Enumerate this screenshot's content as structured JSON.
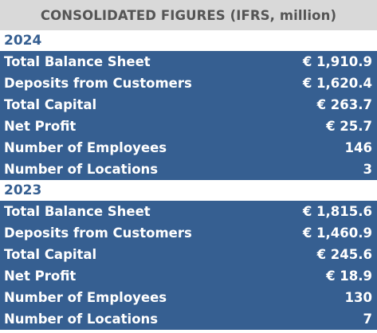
{
  "header": {
    "title": "CONSOLIDATED FIGURES (IFRS, million)"
  },
  "sections": [
    {
      "year": "2024",
      "rows": [
        {
          "label": "Total Balance Sheet",
          "value": "€ 1,910.9"
        },
        {
          "label": "Deposits from Customers",
          "value": "€ 1,620.4"
        },
        {
          "label": "Total Capital",
          "value": "€ 263.7"
        },
        {
          "label": "Net Profit",
          "value": "€ 25.7"
        },
        {
          "label": "Number of Employees",
          "value": "146"
        },
        {
          "label": "Number of Locations",
          "value": "3"
        }
      ]
    },
    {
      "year": "2023",
      "rows": [
        {
          "label": "Total Balance Sheet",
          "value": "€ 1,815.6"
        },
        {
          "label": "Deposits from Customers",
          "value": "€ 1,460.9"
        },
        {
          "label": "Total Capital",
          "value": "€ 245.6"
        },
        {
          "label": "Net Profit",
          "value": "€ 18.9"
        },
        {
          "label": "Number of Employees",
          "value": "130"
        },
        {
          "label": "Number of Locations",
          "value": "7"
        }
      ]
    }
  ],
  "colors": {
    "header_bg": "#d9d9d9",
    "header_text": "#555555",
    "row_bg": "#365f91",
    "year_text": "#365f91"
  }
}
